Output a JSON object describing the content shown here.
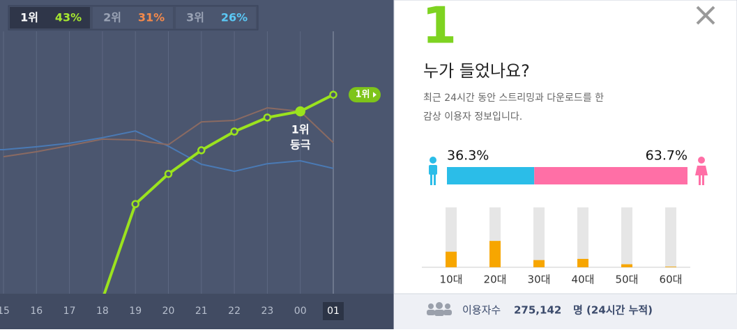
{
  "tabs": [
    {
      "rank": "1위",
      "share": "43%"
    },
    {
      "rank": "2위",
      "share": "31%"
    },
    {
      "rank": "3위",
      "share": "26%"
    }
  ],
  "panel": {
    "rank": "1",
    "title": "누가 들었나요?",
    "description": [
      "최근 24시간 동안 스트리밍과 다운로드를 한",
      "감상 이용자 정보입니다."
    ],
    "footer": {
      "label": "이용자수",
      "count": "275,142",
      "unit": "명 (24시간 누적)"
    }
  },
  "chart_data": [
    {
      "type": "line",
      "categories": [
        "15",
        "16",
        "17",
        "18",
        "19",
        "20",
        "21",
        "22",
        "23",
        "00",
        "01"
      ],
      "ylim": [
        0,
        100
      ],
      "end_label": "1위",
      "annotation": [
        "1위",
        "등극"
      ],
      "series": [
        {
          "color": "#4a7ab5",
          "values": [
            48.8,
            49.8,
            51,
            52.9,
            55.2,
            50,
            43.8,
            41.4,
            44,
            45,
            42.4
          ]
        },
        {
          "color": "#8a6a62",
          "values": [
            46.4,
            48.1,
            50.2,
            52.4,
            52.1,
            50.5,
            58.3,
            58.8,
            63.1,
            61.9,
            51.2
          ]
        },
        {
          "color": "#9be31e",
          "values": [
            null,
            null,
            null,
            -2.4,
            30.2,
            40.5,
            48.6,
            55,
            59.8,
            61.9,
            67.6
          ]
        }
      ]
    },
    {
      "type": "stacked_bar",
      "values": [
        36.3,
        63.7
      ],
      "value_labels": [
        "36.3%",
        "63.7%"
      ],
      "colors": [
        "#2bbde8",
        "#ff6fa6"
      ]
    },
    {
      "type": "bar",
      "categories": [
        "10대",
        "20대",
        "30대",
        "40대",
        "50대",
        "60대"
      ],
      "values": [
        26,
        44,
        12,
        14,
        5,
        1
      ],
      "ylim": [
        0,
        100
      ],
      "color": "#f7a600",
      "track_color": "#e6e6e6"
    }
  ]
}
